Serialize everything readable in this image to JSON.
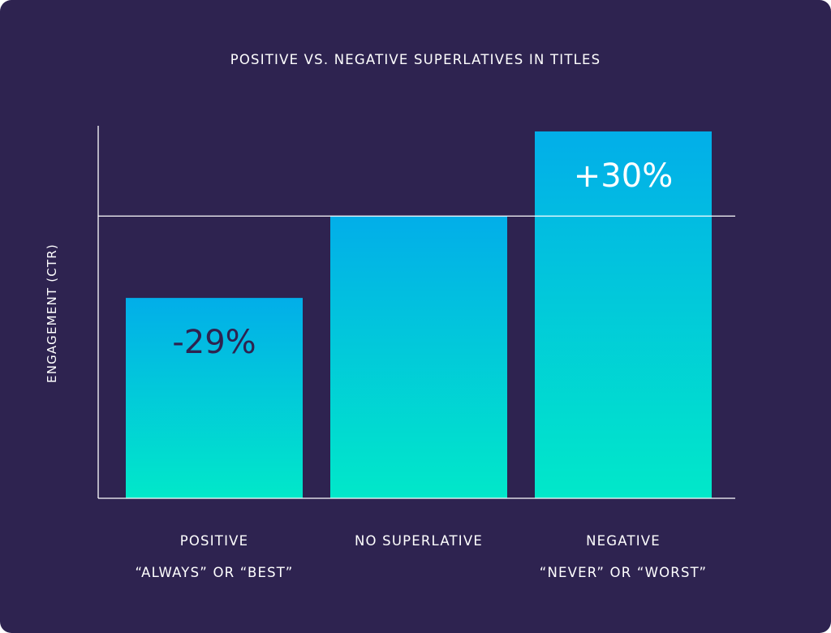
{
  "chart_data": {
    "type": "bar",
    "title": "POSITIVE VS. NEGATIVE SUPERLATIVES IN TITLES",
    "ylabel": "ENGAGEMENT (CTR)",
    "xlabel": "",
    "categories": [
      {
        "line1": "POSITIVE",
        "line2": "“ALWAYS” OR “BEST”"
      },
      {
        "line1": "NO SUPERLATIVE",
        "line2": ""
      },
      {
        "line1": "NEGATIVE",
        "line2": "“NEVER” OR “WORST”"
      }
    ],
    "values": [
      71,
      100,
      130
    ],
    "data_labels": [
      "-29%",
      "",
      "+30%"
    ],
    "baseline": 100,
    "ylim": [
      0,
      132
    ],
    "grid": false,
    "legend": "none",
    "colors": {
      "background": "#2e2350",
      "bar_top": "#02aee9",
      "bar_bottom": "#01e8c9",
      "axis": "#ffffff",
      "text": "#ffffff",
      "label_dark": "#2e2350"
    }
  }
}
